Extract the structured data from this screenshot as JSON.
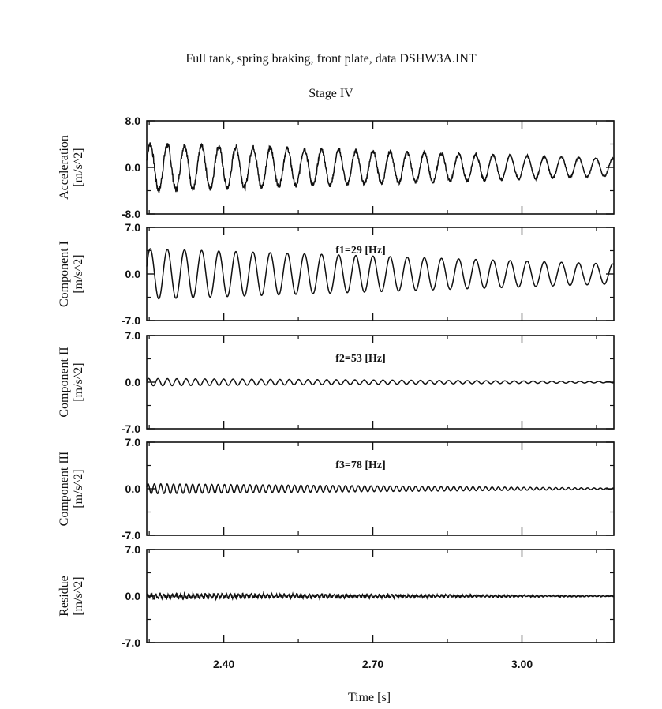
{
  "chart_data": {
    "type": "line",
    "title": "Full tank, spring braking, front plate, data DSHW3A.INT",
    "subtitle": "Stage IV",
    "xlabel": "Time [s]",
    "xlim": [
      2.245,
      3.185
    ],
    "x_ticks": [
      "2.40",
      "2.70",
      "3.00"
    ],
    "x_tick_values": [
      2.4,
      2.7,
      3.0
    ],
    "grid": false,
    "panels": [
      {
        "ylabel_line1": "Acceleration",
        "ylabel_line2": "[m/s^2]",
        "y_ticks": [
          "8.0",
          "0.0",
          "-8.0"
        ],
        "ylim": [
          -8.0,
          8.0
        ],
        "annotation": "",
        "signal": {
          "frequency_hz": 29,
          "amplitude_start": 4.0,
          "amplitude_end": 1.5,
          "offset": 0.0,
          "noise": 0.45
        }
      },
      {
        "ylabel_line1": "Component I",
        "ylabel_line2": "[m/s^2]",
        "y_ticks": [
          "7.0",
          "0.0",
          "-7.0"
        ],
        "ylim": [
          -7.0,
          7.0
        ],
        "annotation": "f1=29 [Hz]",
        "signal": {
          "frequency_hz": 29,
          "amplitude_start": 3.8,
          "amplitude_end": 1.5,
          "offset": 0.0,
          "noise": 0.0
        }
      },
      {
        "ylabel_line1": "Component II",
        "ylabel_line2": "[m/s^2]",
        "y_ticks": [
          "7.0",
          "0.0",
          "-7.0"
        ],
        "ylim": [
          -7.0,
          7.0
        ],
        "annotation": "f2=53 [Hz]",
        "signal": {
          "frequency_hz": 53,
          "amplitude_start": 0.55,
          "amplitude_end": 0.1,
          "offset": 0.0,
          "noise": 0.0
        }
      },
      {
        "ylabel_line1": "Component III",
        "ylabel_line2": "[m/s^2]",
        "y_ticks": [
          "7.0",
          "0.0",
          "-7.0"
        ],
        "ylim": [
          -7.0,
          7.0
        ],
        "annotation": "f3=78 [Hz]",
        "signal": {
          "frequency_hz": 78,
          "amplitude_start": 0.75,
          "amplitude_end": 0.1,
          "offset": 0.0,
          "noise": 0.0
        }
      },
      {
        "ylabel_line1": "Residue",
        "ylabel_line2": "[m/s^2]",
        "y_ticks": [
          "7.0",
          "0.0",
          "-7.0"
        ],
        "ylim": [
          -7.0,
          7.0
        ],
        "annotation": "",
        "signal": {
          "frequency_hz": 120,
          "amplitude_start": 0.3,
          "amplitude_end": 0.05,
          "offset": 0.0,
          "noise": 0.2
        }
      }
    ]
  }
}
